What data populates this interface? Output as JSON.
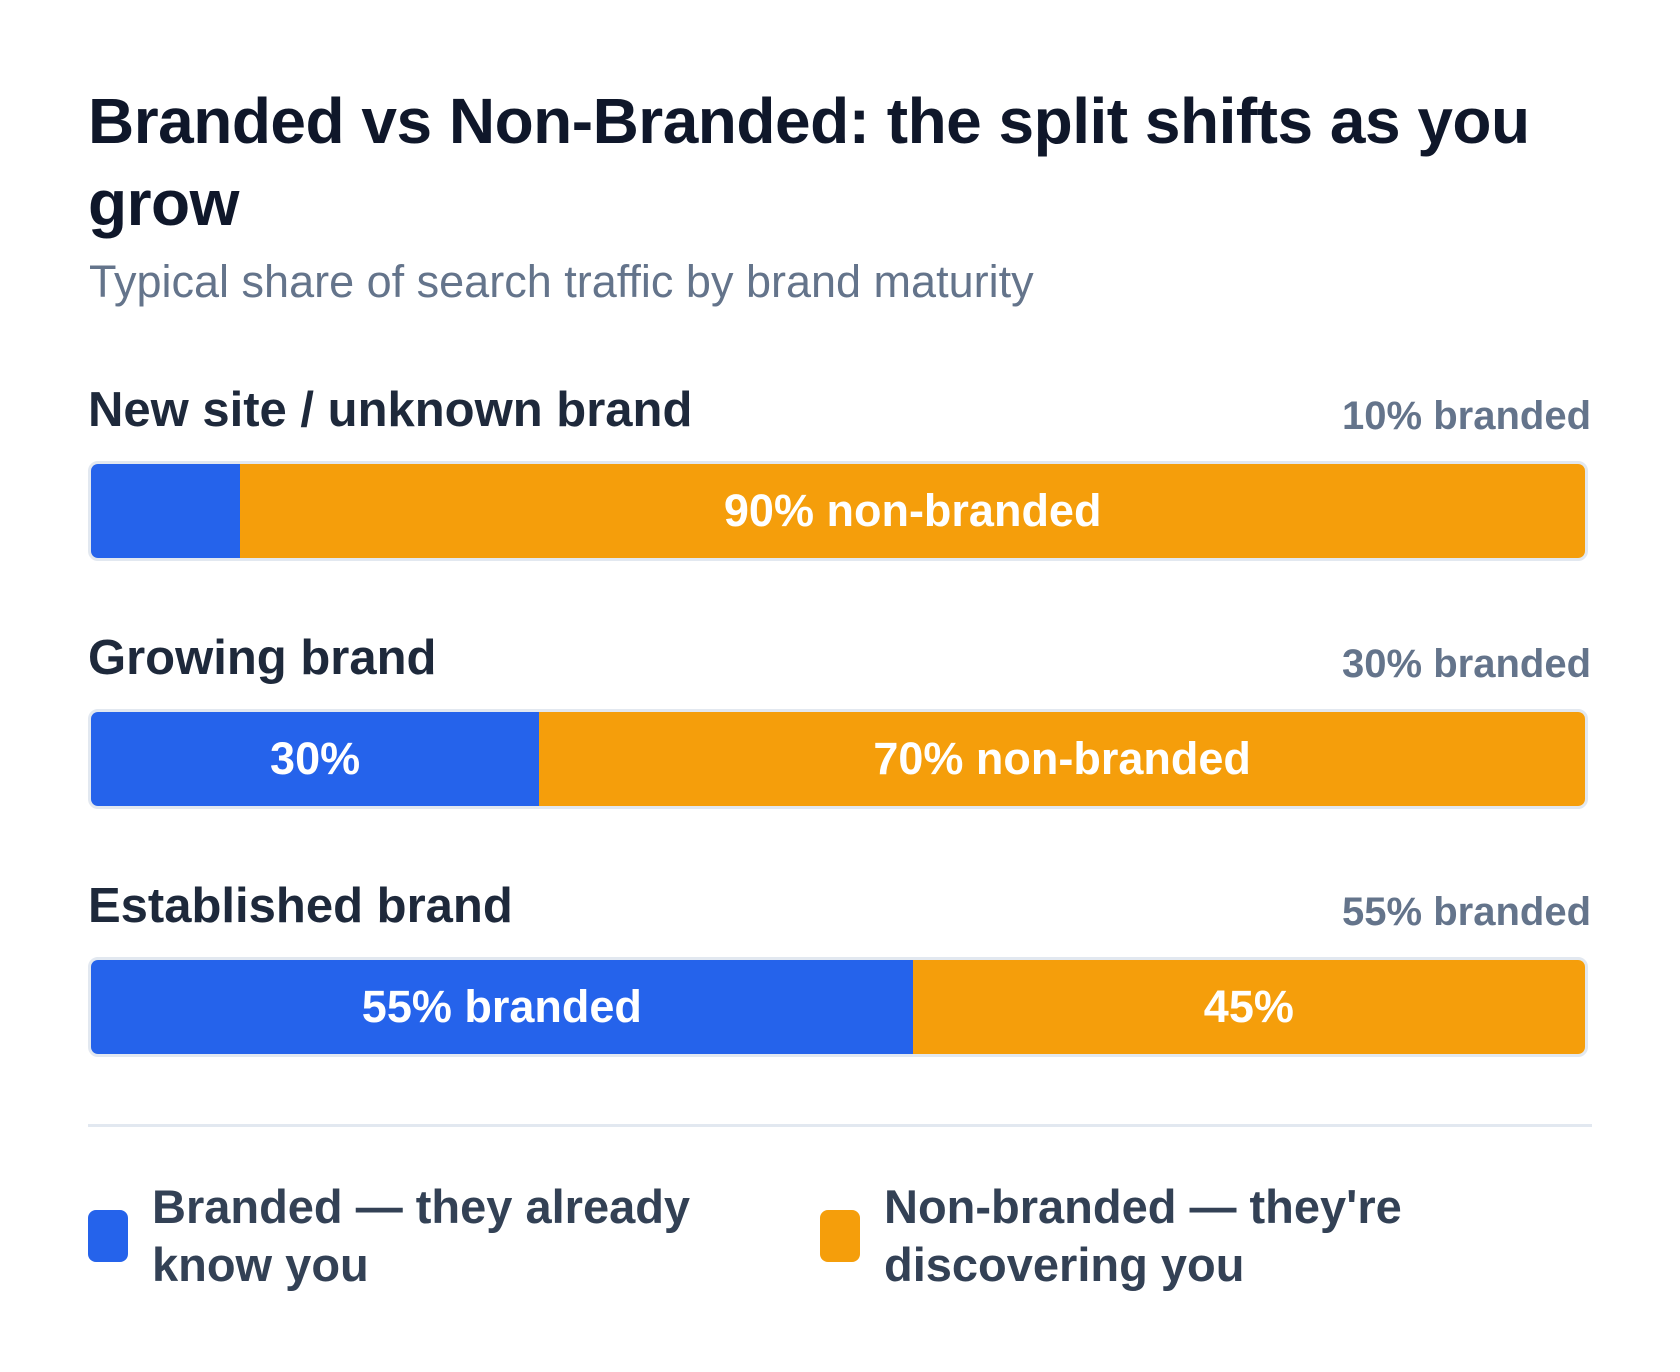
{
  "chart_data": {
    "type": "stacked-bar-100",
    "title": "Branded vs Non-Branded: the split shifts as you grow",
    "subtitle": "Typical share of search traffic by brand maturity",
    "categories": [
      "New site / unknown brand",
      "Growing brand",
      "Established brand"
    ],
    "side_labels": [
      "10% branded",
      "30% branded",
      "55% branded"
    ],
    "series": [
      {
        "name": "Branded — they already know you",
        "color": "#2563eb",
        "values": [
          10,
          30,
          55
        ],
        "value_labels": [
          null,
          "30%",
          "55% branded"
        ]
      },
      {
        "name": "Non-branded — they're discovering you",
        "color": "#f59e0b",
        "values": [
          90,
          70,
          45
        ],
        "value_labels": [
          "90% non-branded",
          "70% non-branded",
          "45%"
        ]
      }
    ]
  }
}
